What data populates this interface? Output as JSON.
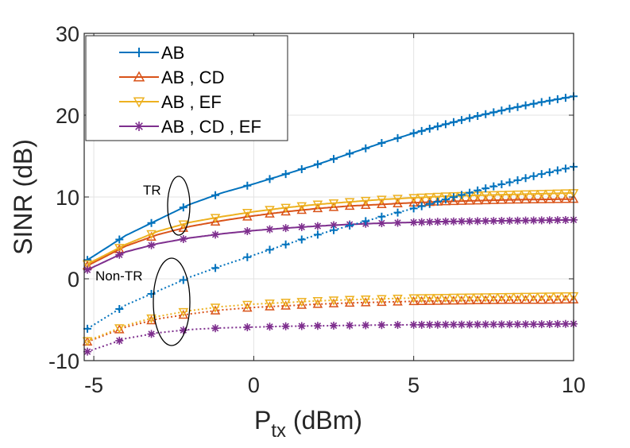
{
  "chart_data": {
    "type": "line",
    "title": "",
    "xlabel": {
      "main": "P",
      "sub": "tx",
      "unit": " (dBm)"
    },
    "ylabel": "SINR (dB)",
    "xlim": [
      -5.3,
      10
    ],
    "ylim": [
      -10,
      30
    ],
    "xticks": [
      -5,
      0,
      5,
      10
    ],
    "xtick_labels": [
      "-5",
      "0",
      "5",
      "10"
    ],
    "yticks": [
      -10,
      0,
      10,
      20,
      30
    ],
    "ytick_labels": [
      "-10",
      "0",
      "10",
      "20",
      "30"
    ],
    "grid": true,
    "legend_position": "top-left",
    "x": [
      -5.2,
      -4,
      -3,
      -2,
      -1,
      0,
      1,
      2,
      3,
      4,
      5,
      6,
      7,
      8,
      9,
      10
    ],
    "series": [
      {
        "name": "AB",
        "group": "TR",
        "color": "#0072BD",
        "marker": "plus",
        "style": "solid",
        "values": [
          2.3,
          5.3,
          7.2,
          9.1,
          10.5,
          11.6,
          12.8,
          14.0,
          15.3,
          16.6,
          17.8,
          18.9,
          19.9,
          20.8,
          21.6,
          22.3
        ]
      },
      {
        "name": "AB , CD",
        "group": "TR",
        "color": "#D95319",
        "marker": "triangle-up",
        "style": "solid",
        "values": [
          1.6,
          4.0,
          5.4,
          6.4,
          7.1,
          7.7,
          8.2,
          8.6,
          8.9,
          9.1,
          9.3,
          9.45,
          9.55,
          9.65,
          9.7,
          9.75
        ]
      },
      {
        "name": "AB , EF",
        "group": "TR",
        "color": "#EDB120",
        "marker": "triangle-down",
        "style": "solid",
        "values": [
          1.8,
          4.2,
          5.8,
          6.9,
          7.6,
          8.2,
          8.7,
          9.1,
          9.4,
          9.7,
          9.9,
          10.1,
          10.2,
          10.3,
          10.4,
          10.5
        ]
      },
      {
        "name": "AB , CD , EF",
        "group": "TR",
        "color": "#7E2F8E",
        "marker": "star",
        "style": "solid",
        "values": [
          1.1,
          3.3,
          4.3,
          5.0,
          5.5,
          5.9,
          6.2,
          6.45,
          6.65,
          6.8,
          6.9,
          7.0,
          7.05,
          7.1,
          7.15,
          7.2
        ]
      },
      {
        "name": "AB",
        "group": "Non-TR",
        "color": "#0072BD",
        "marker": "plus",
        "style": "dotted",
        "values": [
          -6.1,
          -3.2,
          -1.5,
          0.2,
          1.6,
          2.9,
          4.2,
          5.4,
          6.5,
          7.6,
          8.6,
          9.7,
          10.8,
          11.8,
          12.8,
          13.7
        ]
      },
      {
        "name": "AB , CD",
        "group": "Non-TR",
        "color": "#D95319",
        "marker": "triangle-up",
        "style": "dotted",
        "values": [
          -7.7,
          -5.9,
          -4.9,
          -4.3,
          -3.8,
          -3.5,
          -3.3,
          -3.1,
          -2.95,
          -2.85,
          -2.75,
          -2.7,
          -2.65,
          -2.6,
          -2.6,
          -2.55
        ]
      },
      {
        "name": "AB , EF",
        "group": "Non-TR",
        "color": "#EDB120",
        "marker": "triangle-down",
        "style": "dotted",
        "values": [
          -7.6,
          -5.7,
          -4.6,
          -3.9,
          -3.4,
          -3.1,
          -2.9,
          -2.7,
          -2.55,
          -2.45,
          -2.35,
          -2.3,
          -2.25,
          -2.2,
          -2.15,
          -2.1
        ]
      },
      {
        "name": "AB , CD , EF",
        "group": "Non-TR",
        "color": "#7E2F8E",
        "marker": "star",
        "style": "dotted",
        "values": [
          -8.9,
          -7.3,
          -6.6,
          -6.2,
          -6.0,
          -5.9,
          -5.8,
          -5.75,
          -5.7,
          -5.65,
          -5.62,
          -5.6,
          -5.58,
          -5.56,
          -5.55,
          -5.5
        ]
      }
    ],
    "legend": [
      "AB",
      "AB , CD",
      "AB , EF",
      "AB , CD , EF"
    ],
    "annotations": [
      "TR",
      "Non-TR"
    ]
  }
}
